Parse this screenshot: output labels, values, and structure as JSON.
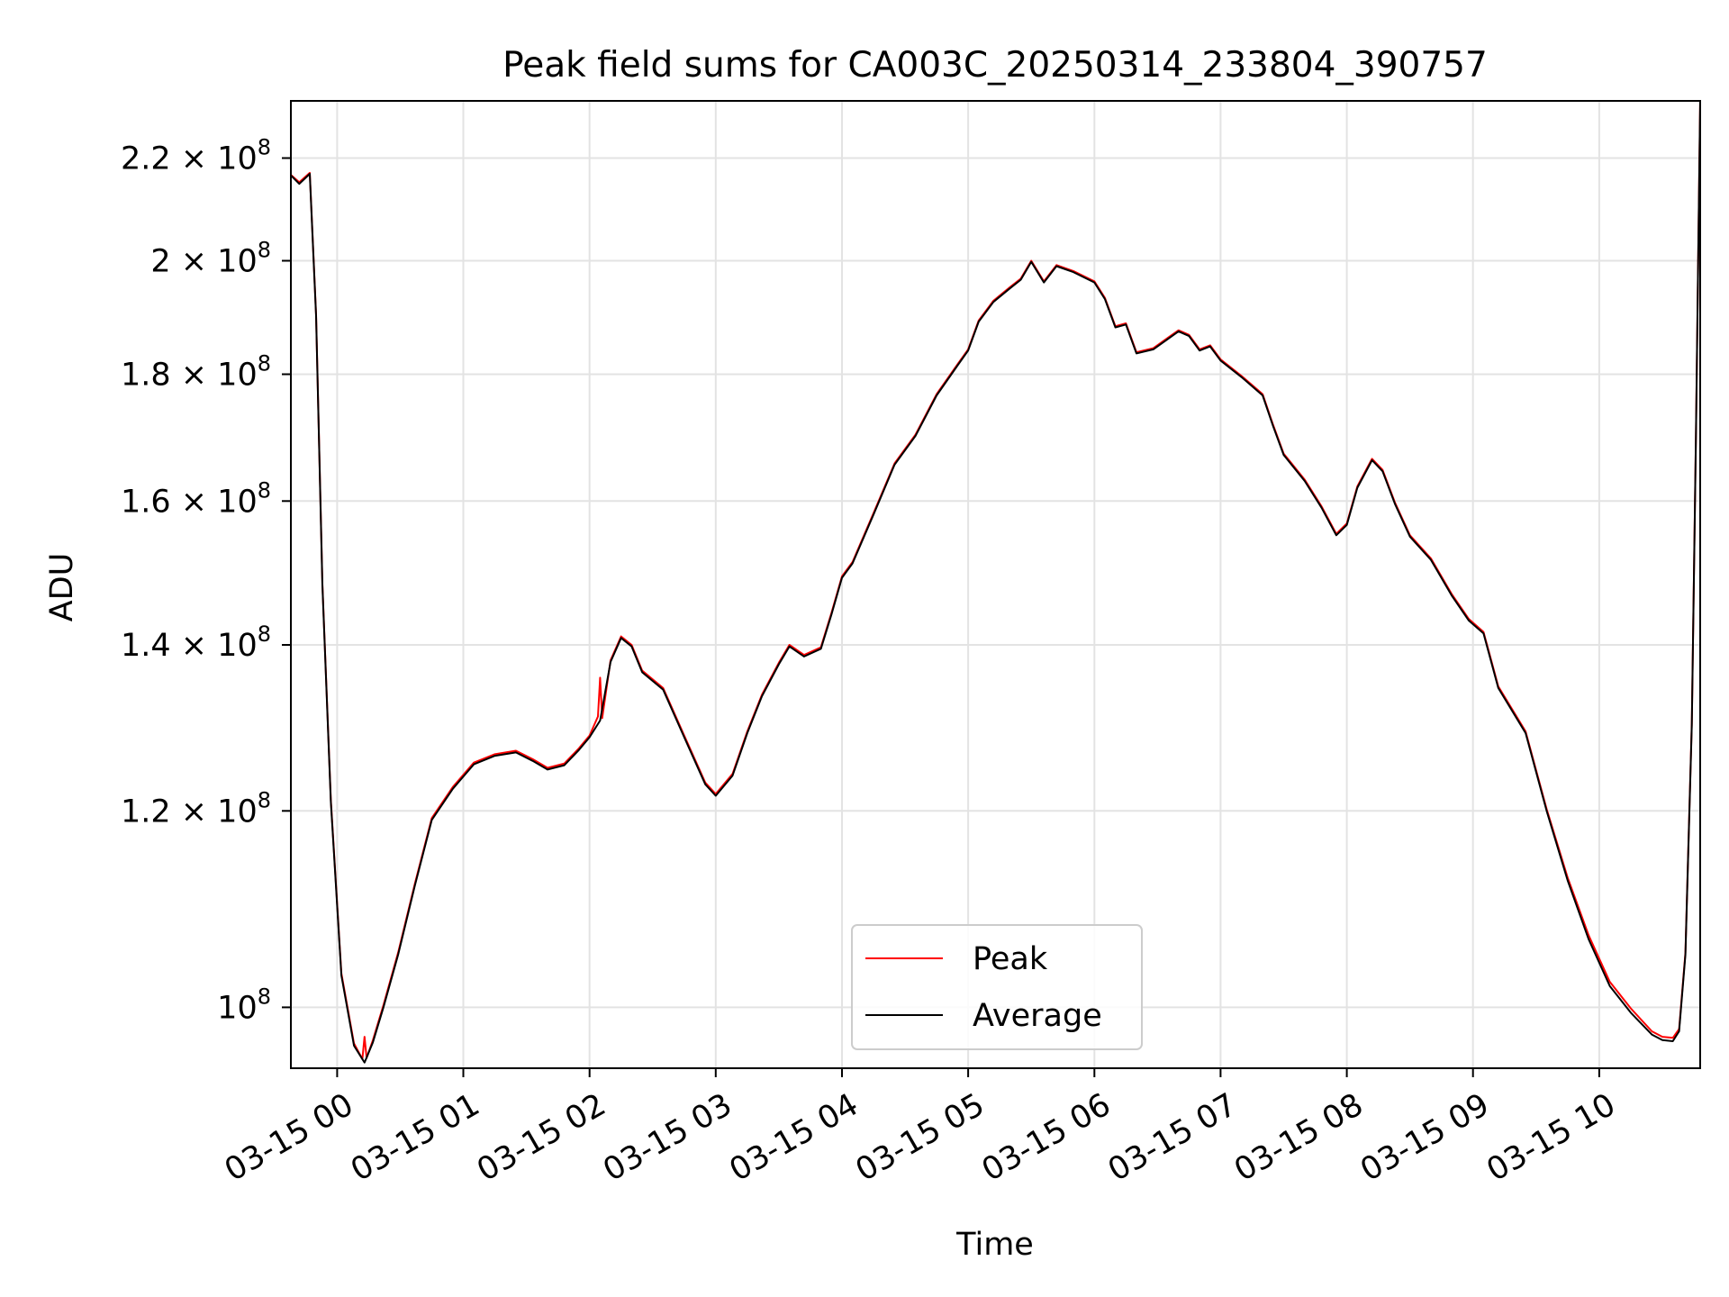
{
  "chart_data": {
    "type": "line",
    "title": "Peak field sums for CA003C_20250314_233804_390757",
    "xlabel": "Time",
    "ylabel": "ADU",
    "x_axis": "datetime",
    "y_scale": "log",
    "grid": true,
    "legend_position": "lower center",
    "xlim": [
      "2025-03-14 23:38",
      "2025-03-15 10:48"
    ],
    "ylim": [
      94500000,
      232000000
    ],
    "x_ticks": [
      {
        "value": "2025-03-15 00:00",
        "label": "03-15 00"
      },
      {
        "value": "2025-03-15 01:00",
        "label": "03-15 01"
      },
      {
        "value": "2025-03-15 02:00",
        "label": "03-15 02"
      },
      {
        "value": "2025-03-15 03:00",
        "label": "03-15 03"
      },
      {
        "value": "2025-03-15 04:00",
        "label": "03-15 04"
      },
      {
        "value": "2025-03-15 05:00",
        "label": "03-15 05"
      },
      {
        "value": "2025-03-15 06:00",
        "label": "03-15 06"
      },
      {
        "value": "2025-03-15 07:00",
        "label": "03-15 07"
      },
      {
        "value": "2025-03-15 08:00",
        "label": "03-15 08"
      },
      {
        "value": "2025-03-15 09:00",
        "label": "03-15 09"
      },
      {
        "value": "2025-03-15 10:00",
        "label": "03-15 10"
      }
    ],
    "y_ticks": [
      {
        "value": 100000000,
        "mantissa": "",
        "exponent": "8",
        "base": "10"
      },
      {
        "value": 120000000,
        "mantissa": "1.2 × ",
        "exponent": "8",
        "base": "10"
      },
      {
        "value": 140000000,
        "mantissa": "1.4 × ",
        "exponent": "8",
        "base": "10"
      },
      {
        "value": 160000000,
        "mantissa": "1.6 × ",
        "exponent": "8",
        "base": "10"
      },
      {
        "value": 180000000,
        "mantissa": "1.8 × ",
        "exponent": "8",
        "base": "10"
      },
      {
        "value": 200000000,
        "mantissa": "2 × ",
        "exponent": "8",
        "base": "10"
      },
      {
        "value": 220000000,
        "mantissa": "2.2 × ",
        "exponent": "8",
        "base": "10"
      }
    ],
    "series": [
      {
        "name": "Average",
        "color": "#000000",
        "points": [
          [
            "2025-03-14 23:38",
            216500000
          ],
          [
            "2025-03-14 23:42",
            214800000
          ],
          [
            "2025-03-14 23:47",
            216800000
          ],
          [
            "2025-03-14 23:50",
            190000000
          ],
          [
            "2025-03-14 23:53",
            148000000
          ],
          [
            "2025-03-14 23:57",
            121000000
          ],
          [
            "2025-03-15 00:02",
            103000000
          ],
          [
            "2025-03-15 00:08",
            96500000
          ],
          [
            "2025-03-15 00:13",
            95000000
          ],
          [
            "2025-03-15 00:17",
            96800000
          ],
          [
            "2025-03-15 00:22",
            100000000
          ],
          [
            "2025-03-15 00:29",
            105000000
          ],
          [
            "2025-03-15 00:37",
            112000000
          ],
          [
            "2025-03-15 00:45",
            119000000
          ],
          [
            "2025-03-15 00:55",
            122500000
          ],
          [
            "2025-03-15 01:05",
            125300000
          ],
          [
            "2025-03-15 01:15",
            126300000
          ],
          [
            "2025-03-15 01:25",
            126700000
          ],
          [
            "2025-03-15 01:33",
            125700000
          ],
          [
            "2025-03-15 01:40",
            124700000
          ],
          [
            "2025-03-15 01:48",
            125200000
          ],
          [
            "2025-03-15 01:55",
            127000000
          ],
          [
            "2025-03-15 02:00",
            128500000
          ],
          [
            "2025-03-15 02:05",
            130500000
          ],
          [
            "2025-03-15 02:10",
            137800000
          ],
          [
            "2025-03-15 02:15",
            140900000
          ],
          [
            "2025-03-15 02:20",
            139800000
          ],
          [
            "2025-03-15 02:25",
            136500000
          ],
          [
            "2025-03-15 02:35",
            134300000
          ],
          [
            "2025-03-15 02:45",
            128500000
          ],
          [
            "2025-03-15 02:55",
            123000000
          ],
          [
            "2025-03-15 03:00",
            121700000
          ],
          [
            "2025-03-15 03:08",
            124000000
          ],
          [
            "2025-03-15 03:15",
            129000000
          ],
          [
            "2025-03-15 03:22",
            133500000
          ],
          [
            "2025-03-15 03:30",
            137500000
          ],
          [
            "2025-03-15 03:35",
            139800000
          ],
          [
            "2025-03-15 03:42",
            138500000
          ],
          [
            "2025-03-15 03:50",
            139500000
          ],
          [
            "2025-03-15 03:55",
            144000000
          ],
          [
            "2025-03-15 04:00",
            149000000
          ],
          [
            "2025-03-15 04:05",
            151000000
          ],
          [
            "2025-03-15 04:15",
            158000000
          ],
          [
            "2025-03-15 04:25",
            165500000
          ],
          [
            "2025-03-15 04:35",
            170000000
          ],
          [
            "2025-03-15 04:45",
            176500000
          ],
          [
            "2025-03-15 04:55",
            181500000
          ],
          [
            "2025-03-15 05:00",
            184000000
          ],
          [
            "2025-03-15 05:05",
            189000000
          ],
          [
            "2025-03-15 05:12",
            192500000
          ],
          [
            "2025-03-15 05:20",
            195000000
          ],
          [
            "2025-03-15 05:25",
            196500000
          ],
          [
            "2025-03-15 05:30",
            199800000
          ],
          [
            "2025-03-15 05:36",
            196000000
          ],
          [
            "2025-03-15 05:42",
            199000000
          ],
          [
            "2025-03-15 05:50",
            197900000
          ],
          [
            "2025-03-15 06:00",
            196000000
          ],
          [
            "2025-03-15 06:05",
            193000000
          ],
          [
            "2025-03-15 06:10",
            188000000
          ],
          [
            "2025-03-15 06:15",
            188500000
          ],
          [
            "2025-03-15 06:20",
            183500000
          ],
          [
            "2025-03-15 06:28",
            184200000
          ],
          [
            "2025-03-15 06:35",
            186000000
          ],
          [
            "2025-03-15 06:40",
            187300000
          ],
          [
            "2025-03-15 06:45",
            186500000
          ],
          [
            "2025-03-15 06:50",
            184000000
          ],
          [
            "2025-03-15 06:55",
            184700000
          ],
          [
            "2025-03-15 07:00",
            182300000
          ],
          [
            "2025-03-15 07:10",
            179500000
          ],
          [
            "2025-03-15 07:20",
            176500000
          ],
          [
            "2025-03-15 07:25",
            171500000
          ],
          [
            "2025-03-15 07:30",
            167000000
          ],
          [
            "2025-03-15 07:40",
            163000000
          ],
          [
            "2025-03-15 07:48",
            159000000
          ],
          [
            "2025-03-15 07:55",
            155000000
          ],
          [
            "2025-03-15 08:00",
            156500000
          ],
          [
            "2025-03-15 08:05",
            162000000
          ],
          [
            "2025-03-15 08:12",
            166200000
          ],
          [
            "2025-03-15 08:17",
            164500000
          ],
          [
            "2025-03-15 08:23",
            159500000
          ],
          [
            "2025-03-15 08:30",
            154800000
          ],
          [
            "2025-03-15 08:40",
            151500000
          ],
          [
            "2025-03-15 08:50",
            146500000
          ],
          [
            "2025-03-15 08:58",
            143200000
          ],
          [
            "2025-03-15 09:05",
            141500000
          ],
          [
            "2025-03-15 09:12",
            134500000
          ],
          [
            "2025-03-15 09:25",
            129000000
          ],
          [
            "2025-03-15 09:35",
            120000000
          ],
          [
            "2025-03-15 09:45",
            112500000
          ],
          [
            "2025-03-15 09:55",
            106500000
          ],
          [
            "2025-03-15 10:05",
            102000000
          ],
          [
            "2025-03-15 10:15",
            99500000
          ],
          [
            "2025-03-15 10:25",
            97500000
          ],
          [
            "2025-03-15 10:30",
            97000000
          ],
          [
            "2025-03-15 10:35",
            96900000
          ],
          [
            "2025-03-15 10:38",
            97800000
          ],
          [
            "2025-03-15 10:41",
            105000000
          ],
          [
            "2025-03-15 10:44",
            130000000
          ],
          [
            "2025-03-15 10:46",
            170000000
          ],
          [
            "2025-03-15 10:48",
            232000000
          ]
        ]
      },
      {
        "name": "Peak",
        "color": "#ff0000",
        "points": [
          [
            "2025-03-14 23:38",
            216600000
          ],
          [
            "2025-03-14 23:42",
            215100000
          ],
          [
            "2025-03-14 23:47",
            217000000
          ],
          [
            "2025-03-14 23:50",
            190200000
          ],
          [
            "2025-03-14 23:53",
            148200000
          ],
          [
            "2025-03-14 23:57",
            121200000
          ],
          [
            "2025-03-15 00:02",
            103200000
          ],
          [
            "2025-03-15 00:08",
            96700000
          ],
          [
            "2025-03-15 00:12",
            95300000
          ],
          [
            "2025-03-15 00:13",
            97300000
          ],
          [
            "2025-03-15 00:14",
            95400000
          ],
          [
            "2025-03-15 00:17",
            97000000
          ],
          [
            "2025-03-15 00:22",
            100200000
          ],
          [
            "2025-03-15 00:29",
            105200000
          ],
          [
            "2025-03-15 00:37",
            112200000
          ],
          [
            "2025-03-15 00:45",
            119200000
          ],
          [
            "2025-03-15 00:55",
            122700000
          ],
          [
            "2025-03-15 01:05",
            125500000
          ],
          [
            "2025-03-15 01:15",
            126500000
          ],
          [
            "2025-03-15 01:25",
            126900000
          ],
          [
            "2025-03-15 01:33",
            125900000
          ],
          [
            "2025-03-15 01:40",
            124900000
          ],
          [
            "2025-03-15 01:48",
            125400000
          ],
          [
            "2025-03-15 01:55",
            127200000
          ],
          [
            "2025-03-15 02:00",
            128700000
          ],
          [
            "2025-03-15 02:04",
            131000000
          ],
          [
            "2025-03-15 02:05",
            135800000
          ],
          [
            "2025-03-15 02:06",
            130800000
          ],
          [
            "2025-03-15 02:10",
            138000000
          ],
          [
            "2025-03-15 02:15",
            141100000
          ],
          [
            "2025-03-15 02:20",
            140000000
          ],
          [
            "2025-03-15 02:25",
            136700000
          ],
          [
            "2025-03-15 02:35",
            134500000
          ],
          [
            "2025-03-15 02:45",
            128700000
          ],
          [
            "2025-03-15 02:55",
            123200000
          ],
          [
            "2025-03-15 03:00",
            121900000
          ],
          [
            "2025-03-15 03:08",
            124200000
          ],
          [
            "2025-03-15 03:15",
            129200000
          ],
          [
            "2025-03-15 03:22",
            133700000
          ],
          [
            "2025-03-15 03:30",
            137700000
          ],
          [
            "2025-03-15 03:35",
            140000000
          ],
          [
            "2025-03-15 03:42",
            138700000
          ],
          [
            "2025-03-15 03:50",
            139700000
          ],
          [
            "2025-03-15 03:55",
            144200000
          ],
          [
            "2025-03-15 04:00",
            149200000
          ],
          [
            "2025-03-15 04:05",
            151200000
          ],
          [
            "2025-03-15 04:15",
            158200000
          ],
          [
            "2025-03-15 04:25",
            165700000
          ],
          [
            "2025-03-15 04:35",
            170200000
          ],
          [
            "2025-03-15 04:45",
            176700000
          ],
          [
            "2025-03-15 04:55",
            181700000
          ],
          [
            "2025-03-15 05:00",
            184200000
          ],
          [
            "2025-03-15 05:05",
            189200000
          ],
          [
            "2025-03-15 05:12",
            192700000
          ],
          [
            "2025-03-15 05:20",
            195200000
          ],
          [
            "2025-03-15 05:25",
            196700000
          ],
          [
            "2025-03-15 05:30",
            200000000
          ],
          [
            "2025-03-15 05:36",
            196200000
          ],
          [
            "2025-03-15 05:42",
            199200000
          ],
          [
            "2025-03-15 05:50",
            198100000
          ],
          [
            "2025-03-15 06:00",
            196200000
          ],
          [
            "2025-03-15 06:05",
            193200000
          ],
          [
            "2025-03-15 06:10",
            188200000
          ],
          [
            "2025-03-15 06:15",
            188700000
          ],
          [
            "2025-03-15 06:20",
            183700000
          ],
          [
            "2025-03-15 06:28",
            184400000
          ],
          [
            "2025-03-15 06:35",
            186200000
          ],
          [
            "2025-03-15 06:40",
            187500000
          ],
          [
            "2025-03-15 06:45",
            186700000
          ],
          [
            "2025-03-15 06:50",
            184200000
          ],
          [
            "2025-03-15 06:55",
            184900000
          ],
          [
            "2025-03-15 07:00",
            182500000
          ],
          [
            "2025-03-15 07:10",
            179700000
          ],
          [
            "2025-03-15 07:20",
            176700000
          ],
          [
            "2025-03-15 07:25",
            171700000
          ],
          [
            "2025-03-15 07:30",
            167200000
          ],
          [
            "2025-03-15 07:40",
            163200000
          ],
          [
            "2025-03-15 07:48",
            159200000
          ],
          [
            "2025-03-15 07:55",
            155200000
          ],
          [
            "2025-03-15 08:00",
            156700000
          ],
          [
            "2025-03-15 08:05",
            162200000
          ],
          [
            "2025-03-15 08:12",
            166400000
          ],
          [
            "2025-03-15 08:17",
            164700000
          ],
          [
            "2025-03-15 08:23",
            159700000
          ],
          [
            "2025-03-15 08:30",
            155000000
          ],
          [
            "2025-03-15 08:40",
            151700000
          ],
          [
            "2025-03-15 08:50",
            146700000
          ],
          [
            "2025-03-15 08:58",
            143400000
          ],
          [
            "2025-03-15 09:05",
            141700000
          ],
          [
            "2025-03-15 09:12",
            134700000
          ],
          [
            "2025-03-15 09:25",
            129200000
          ],
          [
            "2025-03-15 09:35",
            120200000
          ],
          [
            "2025-03-15 09:45",
            112800000
          ],
          [
            "2025-03-15 09:55",
            106900000
          ],
          [
            "2025-03-15 10:05",
            102400000
          ],
          [
            "2025-03-15 10:15",
            99900000
          ],
          [
            "2025-03-15 10:25",
            97800000
          ],
          [
            "2025-03-15 10:30",
            97300000
          ],
          [
            "2025-03-15 10:35",
            97200000
          ],
          [
            "2025-03-15 10:38",
            98000000
          ],
          [
            "2025-03-15 10:41",
            105200000
          ],
          [
            "2025-03-15 10:44",
            130200000
          ],
          [
            "2025-03-15 10:46",
            170200000
          ],
          [
            "2025-03-15 10:48",
            232000000
          ]
        ]
      }
    ],
    "legend": [
      {
        "label": "Peak",
        "color": "#ff0000"
      },
      {
        "label": "Average",
        "color": "#000000"
      }
    ]
  }
}
